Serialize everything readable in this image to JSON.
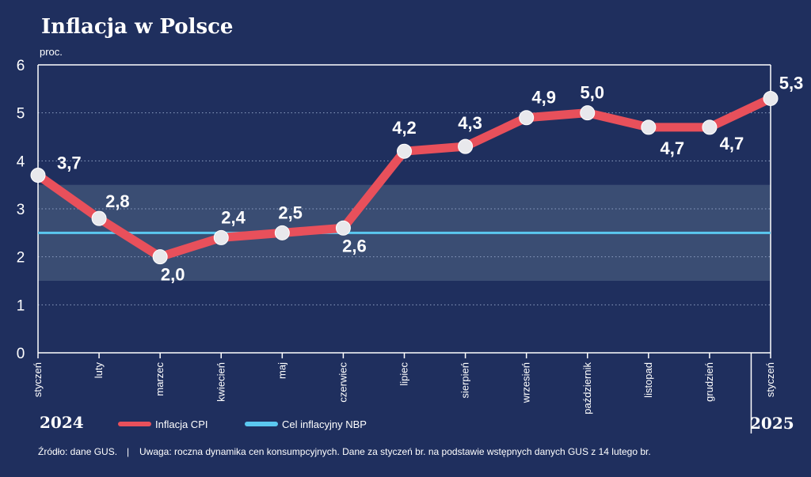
{
  "chart_data": {
    "type": "line",
    "title": "Inflacja w Polsce",
    "unit_label": "proc.",
    "categories": [
      "styczeń",
      "luty",
      "marzec",
      "kwiecień",
      "maj",
      "czerwiec",
      "lipiec",
      "sierpień",
      "wrzesień",
      "październik",
      "listopad",
      "grudzień",
      "styczeń"
    ],
    "years": [
      "2024",
      "2025"
    ],
    "series": [
      {
        "name": "Inflacja CPI",
        "color": "#e8505b",
        "values": [
          3.7,
          2.8,
          2.0,
          2.4,
          2.5,
          2.6,
          4.2,
          4.3,
          4.9,
          5.0,
          4.7,
          4.7,
          5.3
        ],
        "labels": [
          "3,7",
          "2,8",
          "2,0",
          "2,4",
          "2,5",
          "2,6",
          "4,2",
          "4,3",
          "4,9",
          "5,0",
          "4,7",
          "4,7",
          "5,3"
        ]
      },
      {
        "name": "Cel inflacyjny NBP",
        "color": "#5bc8f0",
        "value": 2.5,
        "band": [
          1.5,
          3.5
        ]
      }
    ],
    "ylim": [
      0,
      6
    ],
    "yticks": [
      "0",
      "1",
      "2",
      "3",
      "4",
      "5",
      "6"
    ],
    "grid": true,
    "legend_position": "bottom"
  },
  "footer": {
    "source": "Źródło: dane GUS.",
    "separator": "|",
    "note": "Uwaga: roczna dynamika cen konsumpcyjnych. Dane za styczeń br. na podstawie wstępnych danych GUS z 14 lutego br."
  },
  "colors": {
    "background": "#1f2f5e",
    "band": "#3a4d73",
    "grid": "#8fa0c4"
  }
}
